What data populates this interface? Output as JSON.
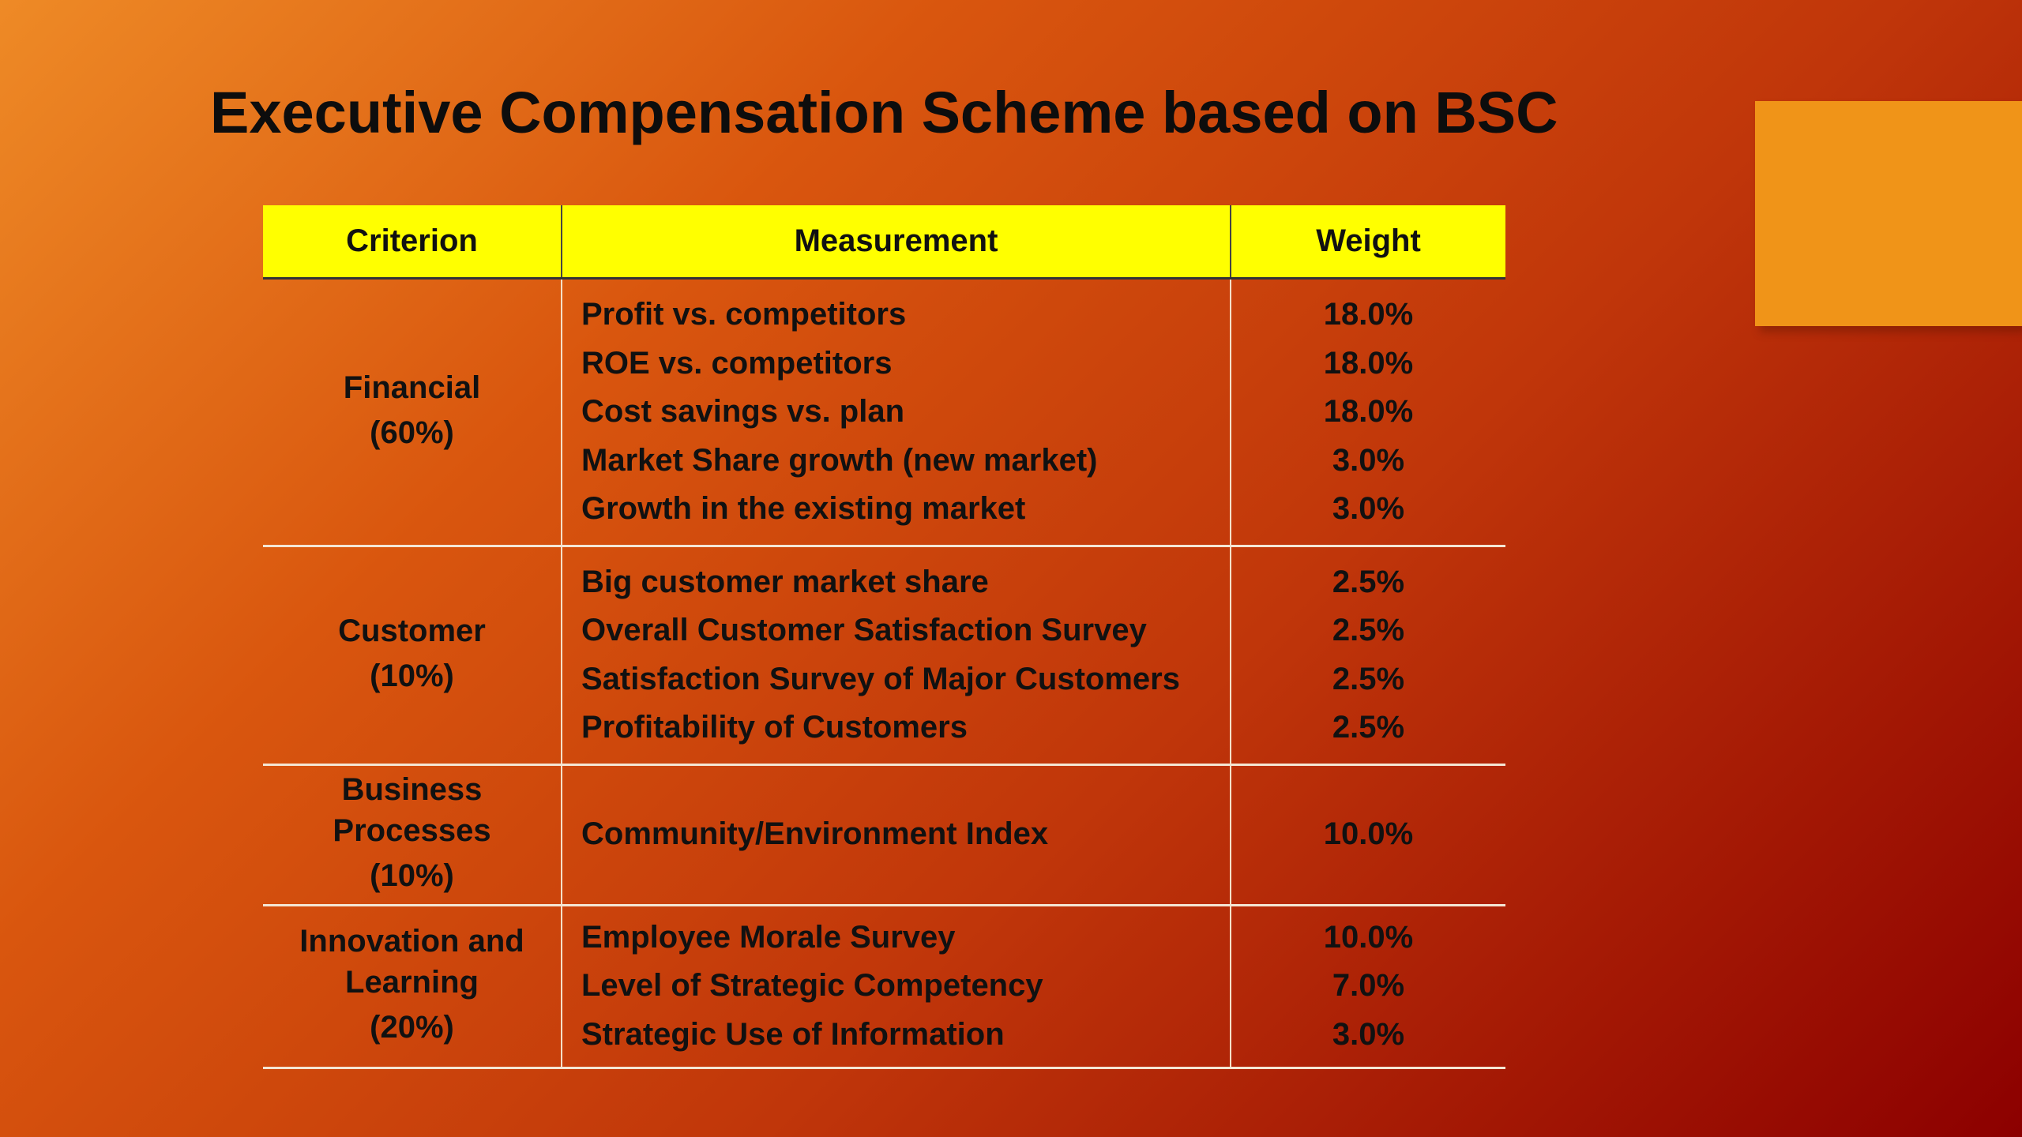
{
  "slide": {
    "title": "Executive Compensation Scheme based on BSC"
  },
  "table": {
    "headers": {
      "criterion": "Criterion",
      "measurement": "Measurement",
      "weight": "Weight"
    },
    "groups": [
      {
        "criterion": "Financial",
        "criterion_pct": "(60%)",
        "rows": [
          {
            "measurement": "Profit vs. competitors",
            "weight": "18.0%"
          },
          {
            "measurement": "ROE vs. competitors",
            "weight": "18.0%"
          },
          {
            "measurement": "Cost savings vs. plan",
            "weight": "18.0%"
          },
          {
            "measurement": "Market Share growth (new market)",
            "weight": "3.0%"
          },
          {
            "measurement": "Growth in the existing market",
            "weight": "3.0%"
          }
        ]
      },
      {
        "criterion": "Customer",
        "criterion_pct": "(10%)",
        "rows": [
          {
            "measurement": "Big customer market share",
            "weight": "2.5%"
          },
          {
            "measurement": "Overall Customer Satisfaction Survey",
            "weight": "2.5%"
          },
          {
            "measurement": "Satisfaction Survey of Major Customers",
            "weight": "2.5%"
          },
          {
            "measurement": "Profitability of Customers",
            "weight": "2.5%"
          }
        ]
      },
      {
        "criterion_line1": "Business",
        "criterion_line2": "Processes",
        "criterion_pct": "(10%)",
        "rows": [
          {
            "measurement": "Community/Environment Index",
            "weight": "10.0%"
          }
        ]
      },
      {
        "criterion_line1": "Innovation and",
        "criterion_line2": "Learning",
        "criterion_pct": "(20%)",
        "rows": [
          {
            "measurement": "Employee Morale Survey",
            "weight": "10.0%"
          },
          {
            "measurement": "Level of Strategic Competency",
            "weight": "7.0%"
          },
          {
            "measurement": "Strategic Use of Information",
            "weight": "3.0%"
          }
        ]
      }
    ]
  },
  "colors": {
    "header_fill": "#ffff00",
    "accent_box": "#f09418",
    "background_start": "#ee8a26",
    "background_end": "#8c0000"
  }
}
